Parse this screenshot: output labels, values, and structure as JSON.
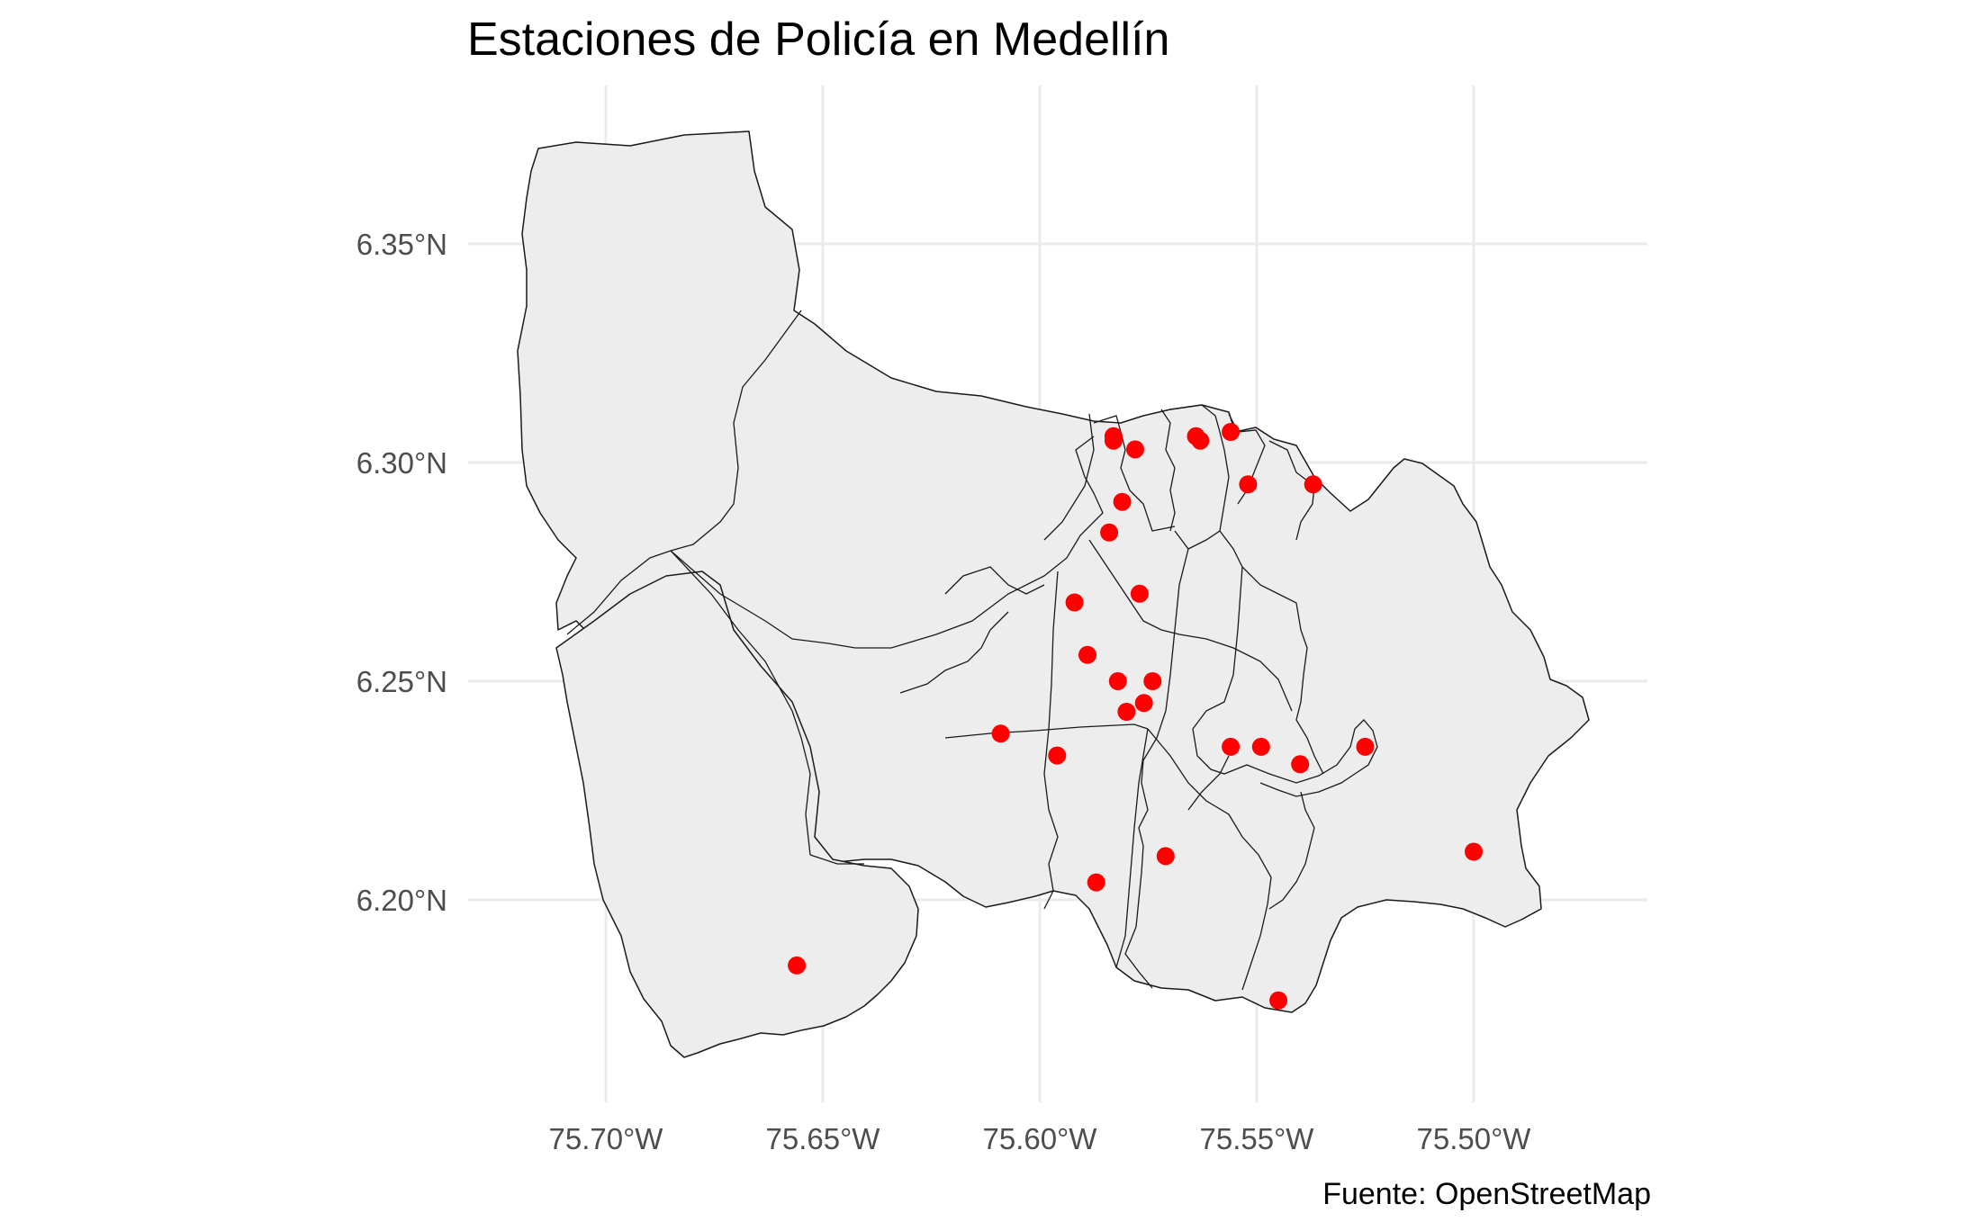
{
  "title": "Estaciones de Policía en Medellín",
  "caption": "Fuente: OpenStreetMap",
  "colors": {
    "station": "#ff0000",
    "region_fill": "#ededed",
    "region_stroke": "#1a1a1a",
    "grid": "#ebebeb"
  },
  "chart_data": {
    "type": "scatter",
    "title": "Estaciones de Policía en Medellín",
    "xlabel": "",
    "ylabel": "",
    "xlim": [
      -75.73,
      -75.46
    ],
    "ylim": [
      6.16,
      6.38
    ],
    "grid": true,
    "x_ticks": [
      -75.7,
      -75.65,
      -75.6,
      -75.55,
      -75.5
    ],
    "x_tick_labels": [
      "75.70°W",
      "75.65°W",
      "75.60°W",
      "75.55°W",
      "75.50°W"
    ],
    "y_ticks": [
      6.2,
      6.25,
      6.3,
      6.35
    ],
    "y_tick_labels": [
      "6.20°N",
      "6.25°N",
      "6.30°N",
      "6.35°N"
    ],
    "series": [
      {
        "points": [
          [
            -75.583,
            6.306
          ],
          [
            -75.583,
            6.305
          ],
          [
            -75.578,
            6.303
          ],
          [
            -75.564,
            6.306
          ],
          [
            -75.563,
            6.305
          ],
          [
            -75.556,
            6.307
          ],
          [
            -75.552,
            6.295
          ],
          [
            -75.537,
            6.295
          ],
          [
            -75.581,
            6.291
          ],
          [
            -75.584,
            6.284
          ],
          [
            -75.577,
            6.27
          ],
          [
            -75.592,
            6.268
          ],
          [
            -75.589,
            6.256
          ],
          [
            -75.582,
            6.25
          ],
          [
            -75.574,
            6.25
          ],
          [
            -75.576,
            6.245
          ],
          [
            -75.58,
            6.243
          ],
          [
            -75.609,
            6.238
          ],
          [
            -75.596,
            6.233
          ],
          [
            -75.556,
            6.235
          ],
          [
            -75.549,
            6.235
          ],
          [
            -75.54,
            6.231
          ],
          [
            -75.525,
            6.235
          ],
          [
            -75.571,
            6.21
          ],
          [
            -75.5,
            6.211
          ],
          [
            -75.587,
            6.204
          ],
          [
            -75.656,
            6.185
          ],
          [
            -75.545,
            6.177
          ]
        ]
      }
    ]
  }
}
